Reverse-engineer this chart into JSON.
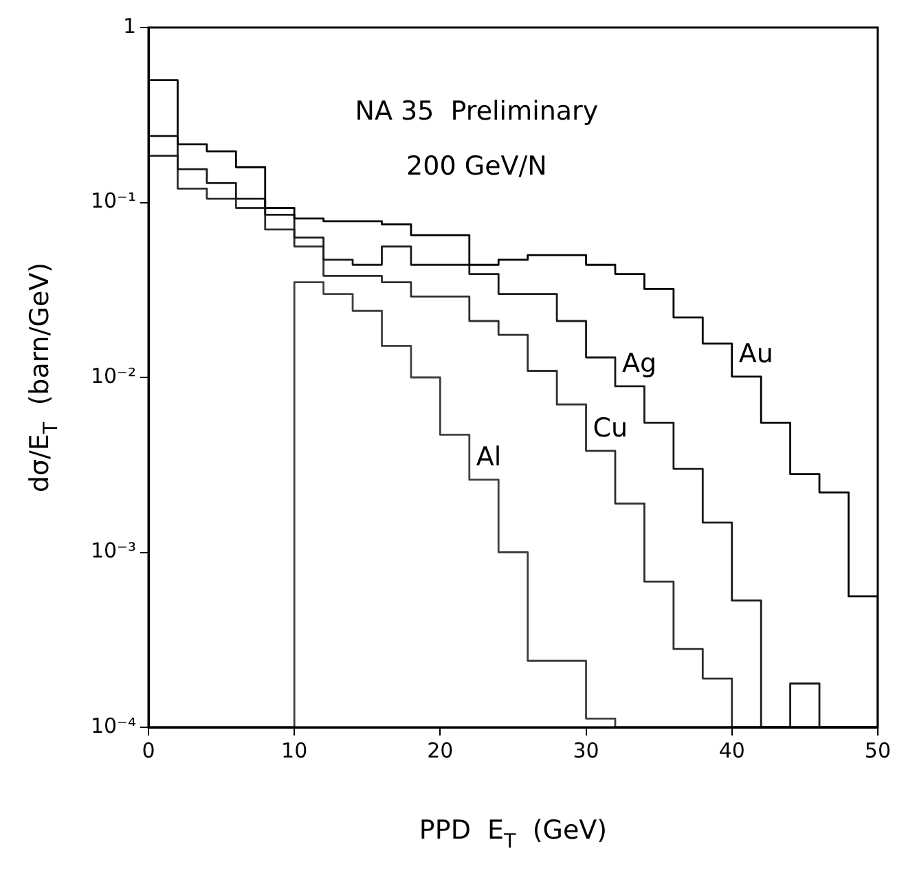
{
  "chart_data": {
    "type": "histogram",
    "title": "NA 35  Preliminary",
    "subtitle": "200 GeV/N",
    "xlabel": "PPD  E$_{T}$  (GeV)",
    "ylabel": "dσ/E$_{T}$  (barn/GeV)",
    "bins": [
      0,
      2,
      4,
      6,
      8,
      10,
      12,
      14,
      16,
      18,
      20,
      22,
      24,
      26,
      28,
      30,
      32,
      34,
      36,
      38,
      40,
      42,
      44,
      46,
      48,
      50
    ],
    "series": [
      {
        "name": "Au",
        "color": "#000000",
        "values": [
          0.5,
          0.215,
          0.196,
          0.159,
          0.093,
          0.081,
          0.078,
          0.078,
          0.075,
          0.065,
          0.065,
          0.044,
          0.047,
          0.05,
          0.05,
          0.044,
          0.039,
          0.032,
          0.022,
          0.0156,
          0.0101,
          0.0055,
          0.0028,
          0.0022,
          0.00056
        ]
      },
      {
        "name": "Ag",
        "color": "#1a1a1a",
        "values": [
          0.24,
          0.155,
          0.129,
          0.105,
          0.085,
          0.063,
          0.047,
          0.044,
          0.056,
          0.044,
          0.044,
          0.039,
          0.03,
          0.03,
          0.021,
          0.013,
          0.0089,
          0.0055,
          0.003,
          0.00148,
          0.00053,
          null,
          0.000178,
          null,
          null
        ]
      },
      {
        "name": "Cu",
        "color": "#2e2e2e",
        "values": [
          0.185,
          0.12,
          0.105,
          0.093,
          0.07,
          0.056,
          0.038,
          0.038,
          0.035,
          0.029,
          0.029,
          0.021,
          0.0175,
          0.0109,
          0.007,
          0.0038,
          0.0019,
          0.00068,
          0.00028,
          0.00019,
          null,
          null,
          null,
          null,
          null
        ]
      },
      {
        "name": "Al",
        "color": "#404040",
        "values": [
          null,
          null,
          null,
          null,
          null,
          0.035,
          0.03,
          0.024,
          0.0151,
          0.01,
          0.0047,
          0.0026,
          0.001,
          0.00024,
          0.00024,
          0.000112,
          null,
          null,
          null,
          null,
          null,
          null,
          null,
          null,
          null
        ]
      }
    ],
    "log": true,
    "xlim": [
      0,
      50
    ],
    "xticks": [
      0,
      10,
      20,
      30,
      40,
      50
    ],
    "ylim": [
      0.0001,
      1
    ],
    "yticks": [
      {
        "value": 0.0001,
        "label": "10⁻⁴"
      },
      {
        "value": 0.001,
        "label": "10⁻³"
      },
      {
        "value": 0.01,
        "label": "10⁻²"
      },
      {
        "value": 0.1,
        "label": "10⁻¹"
      },
      {
        "value": 1,
        "label": "1"
      }
    ]
  }
}
